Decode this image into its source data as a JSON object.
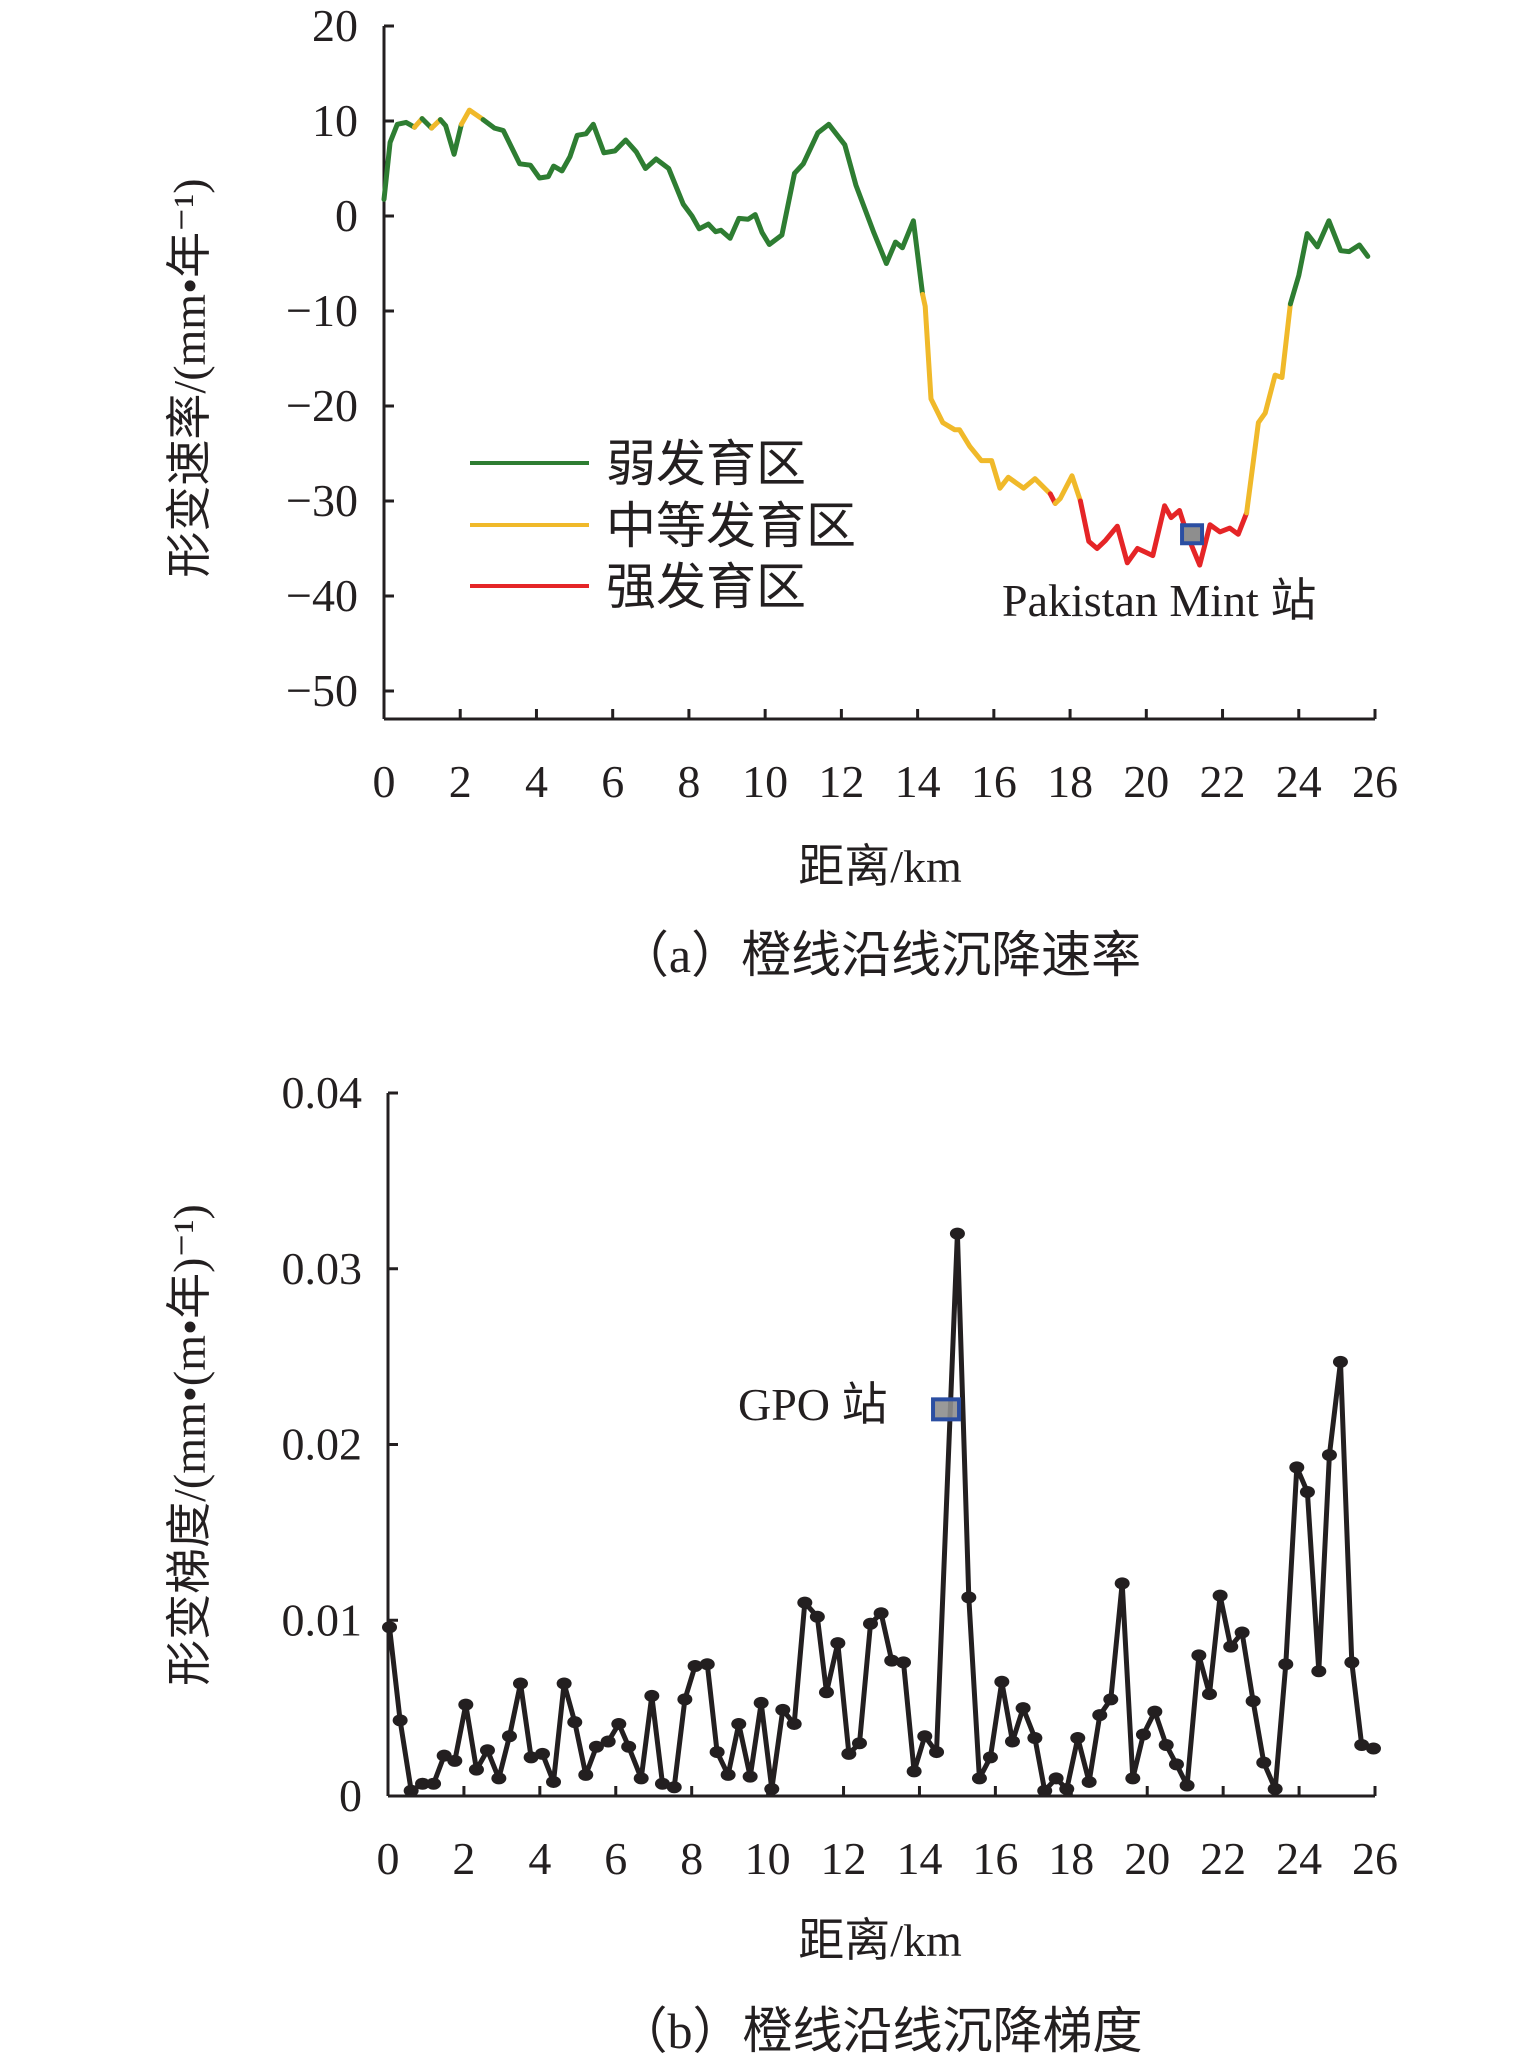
{
  "chart_data": [
    {
      "type": "line",
      "caption": "（a）橙线沿线沉降速率",
      "xlabel": "距离/km",
      "ylabel": "形变速率/(mm•年⁻¹)",
      "xlim": [
        0,
        26
      ],
      "ylim": [
        -50,
        20
      ],
      "xticks": [
        "0",
        "2",
        "4",
        "6",
        "8",
        "10",
        "12",
        "14",
        "16",
        "18",
        "20",
        "22",
        "24",
        "26"
      ],
      "yticks": [
        "20",
        "10",
        "0",
        "−10",
        "−20",
        "−30",
        "−40",
        "−50"
      ],
      "ytick_values": [
        20,
        10,
        0,
        -10,
        -20,
        -30,
        -40,
        -50
      ],
      "legend": [
        {
          "key": "w",
          "label": "弱发育区",
          "color": "#2e7d32"
        },
        {
          "key": "m",
          "label": "中等发育区",
          "color": "#f0b92a"
        },
        {
          "key": "s",
          "label": "强发育区",
          "color": "#e52527"
        }
      ],
      "legend_position": "lower-left",
      "annotation": {
        "label": "Pakistan Mint 站",
        "x": 21.2,
        "y": -33.5
      },
      "x": [
        0,
        0.16,
        0.35,
        0.58,
        0.8,
        1.0,
        1.25,
        1.48,
        1.62,
        1.84,
        2.03,
        2.24,
        2.6,
        2.9,
        3.13,
        3.56,
        3.84,
        4.08,
        4.31,
        4.45,
        4.67,
        4.88,
        5.07,
        5.3,
        5.49,
        5.77,
        6.06,
        6.34,
        6.62,
        6.86,
        7.14,
        7.47,
        7.85,
        8.08,
        8.27,
        8.51,
        8.7,
        8.84,
        9.08,
        9.31,
        9.55,
        9.74,
        9.92,
        10.11,
        10.44,
        10.77,
        11.0,
        11.38,
        11.67,
        12.09,
        12.38,
        12.85,
        13.18,
        13.42,
        13.6,
        13.89,
        14.13,
        14.2,
        14.35,
        14.66,
        14.97,
        15.1,
        15.37,
        15.67,
        15.94,
        16.16,
        16.38,
        16.78,
        17.08,
        17.48,
        17.61,
        17.74,
        18.05,
        18.27,
        18.49,
        18.71,
        18.93,
        19.24,
        19.5,
        19.77,
        20.17,
        20.48,
        20.65,
        20.87,
        21.09,
        21.4,
        21.67,
        21.93,
        22.19,
        22.41,
        22.63,
        22.94,
        23.12,
        23.38,
        23.56,
        23.78,
        24.0,
        24.22,
        24.49,
        24.79,
        25.1,
        25.32,
        25.59,
        25.81
      ],
      "y": [
        1.75,
        7.75,
        9.65,
        9.85,
        9.35,
        10.25,
        9.25,
        10.15,
        9.5,
        6.5,
        9.65,
        11.15,
        10.15,
        9.25,
        9.0,
        5.5,
        5.35,
        4.0,
        4.15,
        5.25,
        4.75,
        6.25,
        8.5,
        8.65,
        9.65,
        6.65,
        6.85,
        8.0,
        6.75,
        5.0,
        6.0,
        5.0,
        1.25,
        0,
        -1.35,
        -0.85,
        -1.65,
        -1.5,
        -2.35,
        -0.25,
        -0.35,
        0.15,
        -1.75,
        -3.0,
        -2.0,
        4.5,
        5.5,
        8.75,
        9.65,
        7.5,
        3.25,
        -1.75,
        -5.0,
        -2.75,
        -3.35,
        -0.5,
        -8.25,
        -9.5,
        -19.25,
        -21.75,
        -22.5,
        -22.5,
        -24.25,
        -25.75,
        -25.75,
        -28.65,
        -27.5,
        -28.65,
        -27.65,
        -29.25,
        -30.25,
        -29.75,
        -27.35,
        -30.0,
        -34.25,
        -35.0,
        -34.15,
        -32.65,
        -36.5,
        -35.0,
        -35.75,
        -30.5,
        -31.75,
        -31.0,
        -33.75,
        -36.75,
        -32.5,
        -33.25,
        -32.85,
        -33.5,
        -31.25,
        -21.75,
        -20.75,
        -16.75,
        -17.0,
        -9.25,
        -6.25,
        -1.85,
        -3.25,
        -0.5,
        -3.65,
        -3.75,
        -3.05,
        -4.25
      ],
      "zone": [
        "w",
        "w",
        "w",
        "w",
        "m",
        "w",
        "m",
        "w",
        "w",
        "w",
        "m",
        "m",
        "w",
        "w",
        "w",
        "w",
        "w",
        "w",
        "w",
        "w",
        "w",
        "w",
        "w",
        "w",
        "w",
        "w",
        "w",
        "w",
        "w",
        "w",
        "w",
        "w",
        "w",
        "w",
        "w",
        "w",
        "w",
        "w",
        "w",
        "w",
        "w",
        "w",
        "w",
        "w",
        "w",
        "w",
        "w",
        "w",
        "w",
        "w",
        "w",
        "w",
        "w",
        "w",
        "w",
        "w",
        "m",
        "m",
        "m",
        "m",
        "m",
        "m",
        "m",
        "m",
        "m",
        "m",
        "m",
        "m",
        "m",
        "s",
        "m",
        "m",
        "m",
        "s",
        "s",
        "s",
        "s",
        "s",
        "s",
        "s",
        "s",
        "s",
        "s",
        "s",
        "s",
        "s",
        "s",
        "s",
        "s",
        "s",
        "m",
        "m",
        "m",
        "m",
        "m",
        "w",
        "w",
        "w",
        "w",
        "w",
        "w",
        "w",
        "w",
        "w"
      ]
    },
    {
      "type": "line",
      "caption": "（b）橙线沿线沉降梯度",
      "xlabel": "距离/km",
      "ylabel": "形变梯度/(mm•(m•年)⁻¹)",
      "xlim": [
        0,
        26
      ],
      "ylim": [
        0,
        0.04
      ],
      "xticks": [
        "0",
        "2",
        "4",
        "6",
        "8",
        "10",
        "12",
        "14",
        "16",
        "18",
        "20",
        "22",
        "24",
        "26"
      ],
      "yticks": [
        "0.04",
        "0.03",
        "0.02",
        "0.01",
        "0"
      ],
      "ytick_values": [
        0.04,
        0.03,
        0.02,
        0.01,
        0
      ],
      "color": "#231f20",
      "annotation": {
        "label": "GPO 站",
        "x": 14.7,
        "y": 0.022
      },
      "x": [
        0.04,
        0.32,
        0.61,
        0.91,
        1.2,
        1.48,
        1.76,
        2.05,
        2.33,
        2.62,
        2.92,
        3.2,
        3.49,
        3.77,
        4.07,
        4.36,
        4.64,
        4.92,
        5.21,
        5.49,
        5.8,
        6.08,
        6.34,
        6.67,
        6.95,
        7.23,
        7.54,
        7.82,
        8.09,
        8.41,
        8.67,
        8.96,
        9.24,
        9.54,
        9.83,
        10.11,
        10.4,
        10.7,
        10.98,
        11.31,
        11.55,
        11.85,
        12.14,
        12.42,
        12.71,
        12.99,
        13.27,
        13.58,
        13.86,
        14.14,
        14.45,
        15.0,
        15.3,
        15.58,
        15.87,
        16.17,
        16.45,
        16.73,
        17.04,
        17.3,
        17.6,
        17.88,
        18.17,
        18.47,
        18.75,
        19.04,
        19.34,
        19.62,
        19.9,
        20.2,
        20.5,
        20.77,
        21.05,
        21.36,
        21.64,
        21.92,
        22.2,
        22.5,
        22.79,
        23.07,
        23.37,
        23.65,
        23.94,
        24.22,
        24.52,
        24.8,
        25.09,
        25.39,
        25.65,
        25.96
      ],
      "y": [
        0.0096,
        0.0043,
        0.0003,
        0.0007,
        0.0007,
        0.0023,
        0.002,
        0.0052,
        0.0015,
        0.0026,
        0.001,
        0.0034,
        0.0064,
        0.0022,
        0.0024,
        0.0008,
        0.0064,
        0.0042,
        0.0012,
        0.0028,
        0.0031,
        0.0041,
        0.0028,
        0.001,
        0.0057,
        0.0007,
        0.0005,
        0.0055,
        0.0074,
        0.0075,
        0.0025,
        0.0012,
        0.0041,
        0.0011,
        0.0053,
        0.0004,
        0.0049,
        0.0041,
        0.011,
        0.0102,
        0.0059,
        0.0087,
        0.0024,
        0.003,
        0.0098,
        0.0104,
        0.0077,
        0.0076,
        0.0014,
        0.0034,
        0.0025,
        0.032,
        0.0113,
        0.001,
        0.0022,
        0.0065,
        0.0031,
        0.005,
        0.0033,
        0.0003,
        0.001,
        0.0004,
        0.0033,
        0.0008,
        0.0046,
        0.0055,
        0.0121,
        0.001,
        0.0035,
        0.0048,
        0.0029,
        0.0018,
        0.0006,
        0.008,
        0.0058,
        0.0114,
        0.0085,
        0.0093,
        0.0054,
        0.0019,
        0.0004,
        0.0075,
        0.0187,
        0.0173,
        0.0071,
        0.0194,
        0.0247,
        0.0076,
        0.0029,
        0.0027
      ]
    }
  ],
  "marker_colors": {
    "fill": "#8e8e8e",
    "stroke": "#2b4ea2"
  }
}
